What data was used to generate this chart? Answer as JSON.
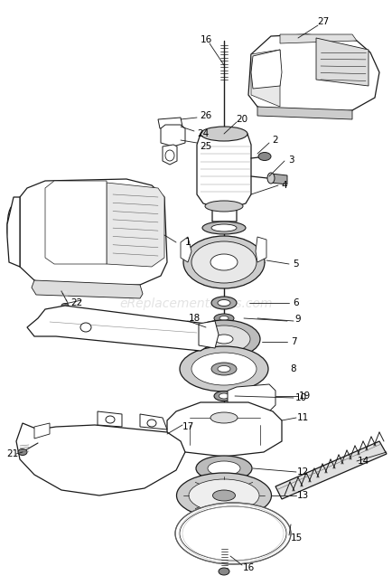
{
  "background_color": "#ffffff",
  "watermark": "eReplacementParts.com",
  "watermark_color": "#c8c8c8",
  "watermark_fontsize": 10,
  "line_color": "#1a1a1a",
  "label_fontsize": 7.5,
  "fig_width": 4.35,
  "fig_height": 6.47,
  "dpi": 100,
  "imgW": 435,
  "imgH": 647
}
